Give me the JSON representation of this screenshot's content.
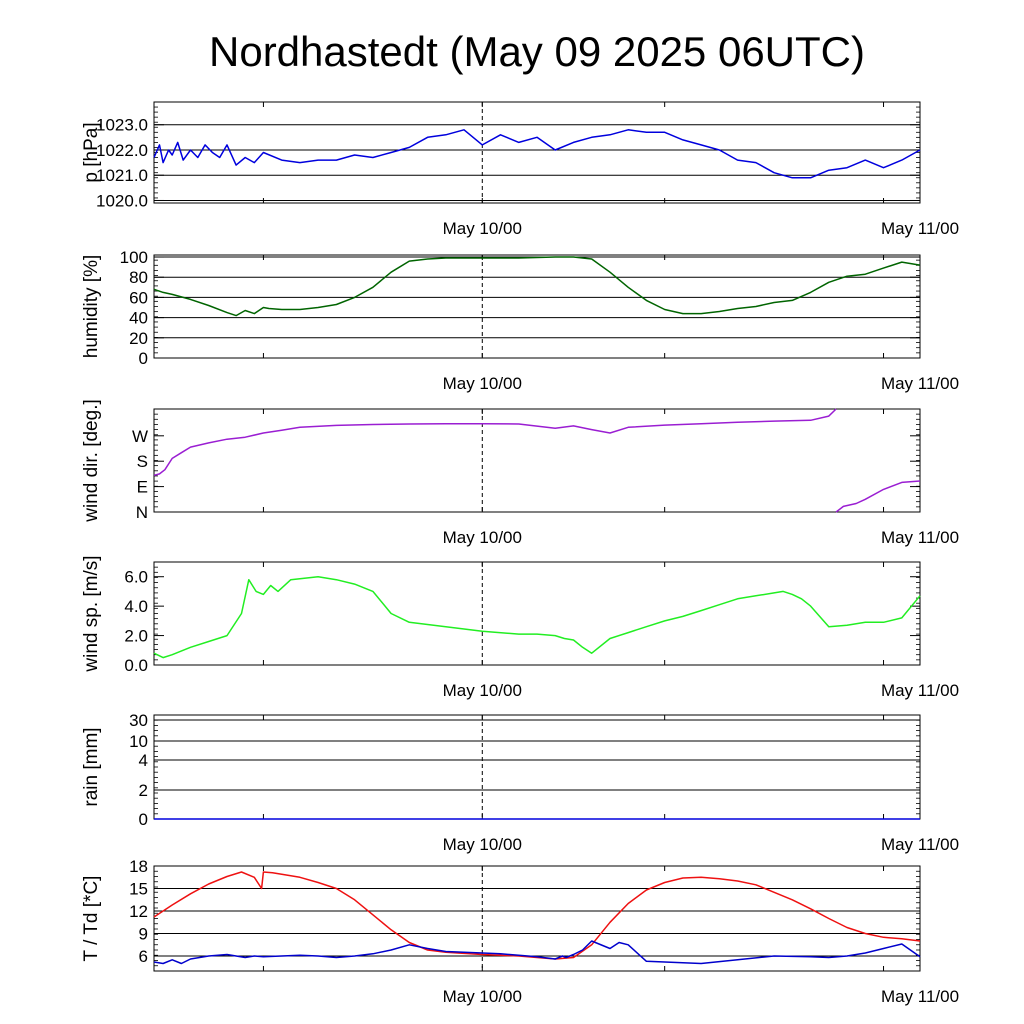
{
  "title": "Nordhastedt (May 09 2025 06UTC)",
  "colors": {
    "pressure": "#0000dd",
    "humidity": "#006400",
    "wind_direction": "#9a1ed2",
    "wind_speed": "#22ee22",
    "rain": "#0000dd",
    "temperature": "#ee1111",
    "dewpoint": "#0000cc"
  },
  "chart_data": [
    {
      "type": "line",
      "ylabel": "p [hPa]",
      "x_ticks": [
        "May 10/00",
        "May 11/00"
      ],
      "x_range_hours": [
        0,
        42
      ],
      "ylim": [
        1019.9,
        1023.9
      ],
      "y_ticks": [
        1020.0,
        1021.0,
        1022.0,
        1023.0
      ],
      "y_tick_labels": [
        "1020.0",
        "1021.0",
        "1022.0",
        "1023.0"
      ],
      "grid": true,
      "series": [
        {
          "x": [
            0,
            0.3,
            0.5,
            0.8,
            1.0,
            1.3,
            1.6,
            2.0,
            2.4,
            2.8,
            3.2,
            3.6,
            4.0,
            4.5,
            5.0,
            5.5,
            6.0,
            7.0,
            8.0,
            9.0,
            10.0,
            11.0,
            12.0,
            13.0,
            14.0,
            15.0,
            16.0,
            17.0,
            18.0,
            19.0,
            20.0,
            21.0,
            22.0,
            23.0,
            24.0,
            25.0,
            26.0,
            27.0,
            28.0,
            29.0,
            30.0,
            31.0,
            32.0,
            33.0,
            34.0,
            35.0,
            36.0,
            37.0,
            38.0,
            39.0,
            40.0,
            41.0,
            42.0
          ],
          "values": [
            1021.7,
            1022.2,
            1021.5,
            1022.0,
            1021.8,
            1022.3,
            1021.6,
            1022.0,
            1021.7,
            1022.2,
            1021.9,
            1021.7,
            1022.2,
            1021.4,
            1021.7,
            1021.5,
            1021.9,
            1021.6,
            1021.5,
            1021.6,
            1021.6,
            1021.8,
            1021.7,
            1021.9,
            1022.1,
            1022.5,
            1022.6,
            1022.8,
            1022.2,
            1022.6,
            1022.3,
            1022.5,
            1022.0,
            1022.3,
            1022.5,
            1022.6,
            1022.8,
            1022.7,
            1022.7,
            1022.4,
            1022.2,
            1022.0,
            1021.6,
            1021.5,
            1021.1,
            1020.9,
            1020.9,
            1021.2,
            1021.3,
            1021.6,
            1021.3,
            1021.6,
            1022.0
          ]
        }
      ]
    },
    {
      "type": "line",
      "ylabel": "humidity [%]",
      "x_ticks": [
        "May 10/00",
        "May 11/00"
      ],
      "x_range_hours": [
        0,
        42
      ],
      "ylim": [
        0,
        102
      ],
      "y_ticks": [
        0,
        20,
        40,
        60,
        80,
        100
      ],
      "y_tick_labels": [
        "0",
        "20",
        "40",
        "60",
        "80",
        "100"
      ],
      "grid": true,
      "series": [
        {
          "x": [
            0,
            0.5,
            1.0,
            2.0,
            3.0,
            4.0,
            4.5,
            5.0,
            5.5,
            6.0,
            6.3,
            7.0,
            8.0,
            9.0,
            10.0,
            11.0,
            12.0,
            13.0,
            14.0,
            15.0,
            16.0,
            17.0,
            18.0,
            20.0,
            22.0,
            23.0,
            24.0,
            25.0,
            26.0,
            27.0,
            28.0,
            29.0,
            30.0,
            31.0,
            32.0,
            33.0,
            34.0,
            35.0,
            36.0,
            37.0,
            38.0,
            39.0,
            40.0,
            41.0,
            42.0
          ],
          "values": [
            68,
            65,
            63,
            58,
            52,
            45,
            42,
            47,
            44,
            50,
            49,
            48,
            48,
            50,
            53,
            60,
            70,
            85,
            96,
            98,
            99,
            99,
            99,
            99,
            100,
            100,
            98,
            85,
            70,
            57,
            48,
            44,
            44,
            46,
            49,
            51,
            55,
            57,
            65,
            75,
            81,
            83,
            89,
            95,
            92
          ]
        }
      ]
    },
    {
      "type": "line",
      "ylabel": "wind dir. [deg.]",
      "x_ticks": [
        "May 10/00",
        "May 11/00"
      ],
      "x_range_hours": [
        0,
        42
      ],
      "ylim": [
        0,
        365
      ],
      "y_ticks": [
        0,
        90,
        180,
        270
      ],
      "y_tick_labels": [
        "N",
        "E",
        "S",
        "W"
      ],
      "grid": false,
      "series": [
        {
          "x": [
            0,
            0.3,
            0.6,
            1.0,
            1.5,
            2.0,
            3.0,
            4.0,
            5.0,
            6.0,
            7.0,
            8.0,
            10.0,
            12.0,
            14.0,
            16.0,
            18.0,
            20.0,
            22.0,
            23.0,
            24.0,
            25.0,
            26.0,
            28.0,
            30.0,
            32.0,
            34.0,
            36.0,
            37.0,
            37.4
          ],
          "values": [
            130,
            135,
            150,
            190,
            210,
            230,
            245,
            258,
            265,
            280,
            290,
            300,
            307,
            310,
            312,
            313,
            313,
            312,
            297,
            305,
            292,
            280,
            300,
            308,
            313,
            318,
            322,
            325,
            340,
            365
          ]
        },
        {
          "x": [
            37.4,
            37.8,
            38.5,
            39.0,
            40.0,
            41.0,
            42.0
          ],
          "values": [
            0,
            20,
            30,
            45,
            80,
            105,
            110
          ]
        }
      ]
    },
    {
      "type": "line",
      "ylabel": "wind sp. [m/s]",
      "x_ticks": [
        "May 10/00",
        "May 11/00"
      ],
      "x_range_hours": [
        0,
        42
      ],
      "ylim": [
        0,
        7.0
      ],
      "y_ticks": [
        0.0,
        2.0,
        4.0,
        6.0
      ],
      "y_tick_labels": [
        "0.0",
        "2.0",
        "4.0",
        "6.0"
      ],
      "grid": false,
      "series": [
        {
          "x": [
            0,
            0.5,
            1.0,
            2.0,
            3.0,
            4.0,
            4.8,
            5.2,
            5.6,
            6.0,
            6.4,
            6.8,
            7.5,
            9.0,
            10.0,
            11.0,
            12.0,
            13.0,
            14.0,
            16.0,
            18.0,
            20.0,
            21.0,
            22.0,
            22.5,
            23.0,
            23.5,
            24.0,
            25.0,
            26.0,
            27.0,
            28.0,
            29.0,
            30.0,
            31.0,
            32.0,
            33.0,
            34.0,
            34.5,
            35.0,
            35.5,
            36.0,
            37.0,
            38.0,
            39.0,
            40.0,
            41.0,
            42.0
          ],
          "values": [
            0.8,
            0.5,
            0.7,
            1.2,
            1.6,
            2.0,
            3.5,
            5.8,
            5.0,
            4.8,
            5.4,
            5.0,
            5.8,
            6.0,
            5.8,
            5.5,
            5.0,
            3.5,
            2.9,
            2.6,
            2.3,
            2.1,
            2.1,
            2.0,
            1.8,
            1.7,
            1.2,
            0.8,
            1.8,
            2.2,
            2.6,
            3.0,
            3.3,
            3.7,
            4.1,
            4.5,
            4.7,
            4.9,
            5.0,
            4.8,
            4.5,
            4.0,
            2.6,
            2.7,
            2.9,
            2.9,
            3.2,
            4.7
          ]
        }
      ]
    },
    {
      "type": "line",
      "ylabel": "rain [mm]",
      "x_ticks": [
        "May 10/00",
        "May 11/00"
      ],
      "x_range_hours": [
        0,
        42
      ],
      "scale": "nonlinear",
      "y_ticks": [
        0,
        2,
        4,
        10,
        30
      ],
      "y_tick_labels": [
        "0",
        "2",
        "4",
        "10",
        "30"
      ],
      "grid": true,
      "series": [
        {
          "x": [
            0,
            42
          ],
          "values": [
            0,
            0
          ]
        }
      ]
    },
    {
      "type": "line",
      "ylabel": "T / Td [*C]",
      "x_ticks": [
        "May 10/00",
        "May 11/00"
      ],
      "x_range_hours": [
        0,
        42
      ],
      "ylim": [
        4,
        18
      ],
      "y_ticks": [
        6,
        9,
        12,
        15,
        18
      ],
      "y_tick_labels": [
        "6",
        "9",
        "12",
        "15",
        "18"
      ],
      "grid": true,
      "series": [
        {
          "x": [
            0,
            1.0,
            2.0,
            3.0,
            4.0,
            4.8,
            5.5,
            5.9,
            6.0,
            6.5,
            7.0,
            8.0,
            9.0,
            10.0,
            11.0,
            12.0,
            13.0,
            14.0,
            15.0,
            16.0,
            18.0,
            20.0,
            21.0,
            22.0,
            23.0,
            24.0,
            25.0,
            26.0,
            27.0,
            28.0,
            29.0,
            30.0,
            31.0,
            32.0,
            33.0,
            34.0,
            35.0,
            36.0,
            37.0,
            38.0,
            39.0,
            40.0,
            41.0,
            42.0
          ],
          "values": [
            11.2,
            12.8,
            14.3,
            15.6,
            16.6,
            17.2,
            16.5,
            15.0,
            17.2,
            17.1,
            16.9,
            16.5,
            15.8,
            15.0,
            13.5,
            11.5,
            9.5,
            7.8,
            6.8,
            6.5,
            6.2,
            6.0,
            5.8,
            5.6,
            5.8,
            7.5,
            10.5,
            13.0,
            14.8,
            15.8,
            16.4,
            16.5,
            16.3,
            16.0,
            15.5,
            14.5,
            13.5,
            12.3,
            11.0,
            9.8,
            9.0,
            8.5,
            8.3,
            8.0
          ]
        },
        {
          "x": [
            0,
            0.5,
            1.0,
            1.5,
            2.0,
            3.0,
            4.0,
            5.0,
            5.5,
            6.0,
            7.0,
            8.0,
            9.0,
            10.0,
            11.0,
            12.0,
            13.0,
            14.0,
            15.0,
            16.0,
            17.0,
            18.0,
            19.0,
            20.0,
            21.0,
            22.0,
            22.4,
            22.6,
            23.0,
            23.5,
            24.0,
            25.0,
            25.5,
            26.0,
            27.0,
            28.0,
            30.0,
            32.0,
            34.0,
            36.0,
            37.0,
            38.0,
            39.0,
            40.0,
            41.0,
            42.0
          ],
          "values": [
            5.2,
            5.0,
            5.5,
            5.0,
            5.6,
            6.0,
            6.2,
            5.8,
            6.0,
            5.9,
            6.0,
            6.1,
            6.0,
            5.8,
            6.0,
            6.3,
            6.8,
            7.5,
            7.0,
            6.6,
            6.5,
            6.4,
            6.3,
            6.1,
            5.9,
            5.6,
            6.0,
            5.8,
            6.2,
            6.8,
            8.0,
            7.0,
            7.8,
            7.5,
            5.3,
            5.2,
            5.0,
            5.5,
            6.0,
            5.9,
            5.8,
            6.0,
            6.4,
            7.0,
            7.6,
            5.9
          ]
        }
      ]
    }
  ]
}
